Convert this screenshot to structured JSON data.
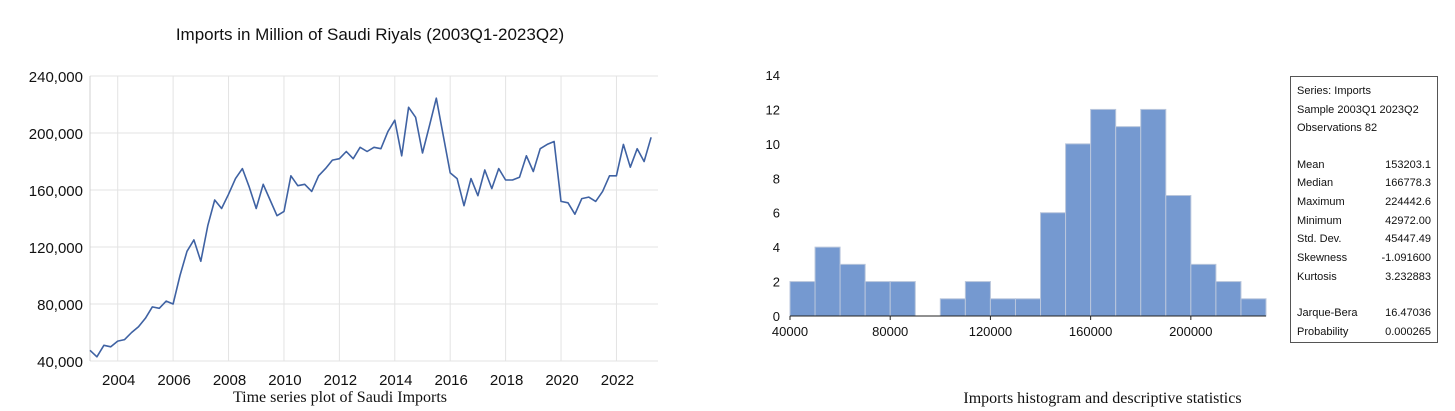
{
  "chart_data": [
    {
      "type": "line",
      "title": "Imports in Million of Saudi Riyals (2003Q1-2023Q2)",
      "xlabel": "",
      "ylabel": "",
      "ylim": [
        40000,
        240000
      ],
      "yticks": [
        40000,
        80000,
        120000,
        160000,
        200000,
        240000
      ],
      "ytick_labels": [
        "40,000",
        "80,000",
        "120,000",
        "160,000",
        "200,000",
        "240,000"
      ],
      "xlim": [
        2003.0,
        2023.5
      ],
      "xticks": [
        2004,
        2006,
        2008,
        2010,
        2012,
        2014,
        2016,
        2018,
        2020,
        2022
      ],
      "xtick_labels": [
        "2004",
        "2006",
        "2008",
        "2010",
        "2012",
        "2014",
        "2016",
        "2018",
        "2020",
        "2022"
      ],
      "grid": "horizontal",
      "color": "#3f62a3",
      "series": [
        {
          "name": "",
          "x": [
            "2003Q1",
            "2003Q2",
            "2003Q3",
            "2003Q4",
            "2004Q1",
            "2004Q2",
            "2004Q3",
            "2004Q4",
            "2005Q1",
            "2005Q2",
            "2005Q3",
            "2005Q4",
            "2006Q1",
            "2006Q2",
            "2006Q3",
            "2006Q4",
            "2007Q1",
            "2007Q2",
            "2007Q3",
            "2007Q4",
            "2008Q1",
            "2008Q2",
            "2008Q3",
            "2008Q4",
            "2009Q1",
            "2009Q2",
            "2009Q3",
            "2009Q4",
            "2010Q1",
            "2010Q2",
            "2010Q3",
            "2010Q4",
            "2011Q1",
            "2011Q2",
            "2011Q3",
            "2011Q4",
            "2012Q1",
            "2012Q2",
            "2012Q3",
            "2012Q4",
            "2013Q1",
            "2013Q2",
            "2013Q3",
            "2013Q4",
            "2014Q1",
            "2014Q2",
            "2014Q3",
            "2014Q4",
            "2015Q1",
            "2015Q2",
            "2015Q3",
            "2015Q4",
            "2016Q1",
            "2016Q2",
            "2016Q3",
            "2016Q4",
            "2017Q1",
            "2017Q2",
            "2017Q3",
            "2017Q4",
            "2018Q1",
            "2018Q2",
            "2018Q3",
            "2018Q4",
            "2019Q1",
            "2019Q2",
            "2019Q3",
            "2019Q4",
            "2020Q1",
            "2020Q2",
            "2020Q3",
            "2020Q4",
            "2021Q1",
            "2021Q2",
            "2021Q3",
            "2021Q4",
            "2022Q1",
            "2022Q2",
            "2022Q3",
            "2022Q4",
            "2023Q1",
            "2023Q2"
          ],
          "values": [
            47500,
            42972,
            51000,
            50000,
            54000,
            55000,
            60000,
            64000,
            70000,
            78000,
            77000,
            82000,
            80000,
            100000,
            117000,
            125000,
            110000,
            135000,
            153000,
            147000,
            157000,
            168000,
            175000,
            162000,
            147000,
            164000,
            153000,
            142000,
            145000,
            170000,
            163000,
            164000,
            159000,
            170000,
            175000,
            181000,
            182000,
            187000,
            182000,
            190000,
            187000,
            190000,
            189000,
            201000,
            209000,
            184000,
            218000,
            211000,
            186000,
            205000,
            224442.6,
            198000,
            172000,
            168000,
            149000,
            168000,
            156000,
            174000,
            161000,
            175000,
            167000,
            167000,
            169000,
            184000,
            173000,
            189000,
            192000,
            194000,
            152000,
            151000,
            143000,
            154000,
            155000,
            152000,
            159000,
            170000,
            170000,
            192000,
            176000,
            189000,
            180000,
            197000
          ]
        }
      ]
    },
    {
      "type": "bar",
      "subtype": "histogram",
      "title": "",
      "xlabel": "",
      "ylabel": "",
      "xlim": [
        40000,
        230000
      ],
      "ylim": [
        0,
        14
      ],
      "yticks": [
        0,
        2,
        4,
        6,
        8,
        10,
        12,
        14
      ],
      "ytick_labels": [
        "0",
        "2",
        "4",
        "6",
        "8",
        "10",
        "12",
        "14"
      ],
      "xticks": [
        40000,
        80000,
        120000,
        160000,
        200000
      ],
      "xtick_labels": [
        "40000",
        "80000",
        "120000",
        "160000",
        "200000"
      ],
      "bin_width": 10000,
      "bin_starts": [
        40000,
        50000,
        60000,
        70000,
        80000,
        90000,
        100000,
        110000,
        120000,
        130000,
        140000,
        150000,
        160000,
        170000,
        180000,
        190000,
        200000,
        210000,
        220000
      ],
      "counts": [
        2,
        4,
        3,
        2,
        2,
        0,
        1,
        2,
        1,
        1,
        6,
        10,
        12,
        11,
        12,
        7,
        3,
        2,
        1
      ],
      "fill": "#7599d0",
      "edge": "#b9c6dc"
    }
  ],
  "captions": {
    "time_series": "Time series plot of Saudi Imports",
    "histogram": "Imports histogram and descriptive statistics"
  },
  "stats": {
    "series_label": "Series: Imports",
    "sample_label": "Sample 2003Q1 2023Q2",
    "observations_label": "Observations 82",
    "rows": [
      {
        "label": "Mean",
        "value": "153203.1"
      },
      {
        "label": "Median",
        "value": "166778.3"
      },
      {
        "label": "Maximum",
        "value": "224442.6"
      },
      {
        "label": "Minimum",
        "value": "42972.00"
      },
      {
        "label": "Std. Dev.",
        "value": "45447.49"
      },
      {
        "label": "Skewness",
        "value": "-1.091600"
      },
      {
        "label": "Kurtosis",
        "value": "3.232883"
      }
    ],
    "test_rows": [
      {
        "label": "Jarque-Bera",
        "value": "16.47036"
      },
      {
        "label": "Probability",
        "value": "0.000265"
      }
    ]
  }
}
